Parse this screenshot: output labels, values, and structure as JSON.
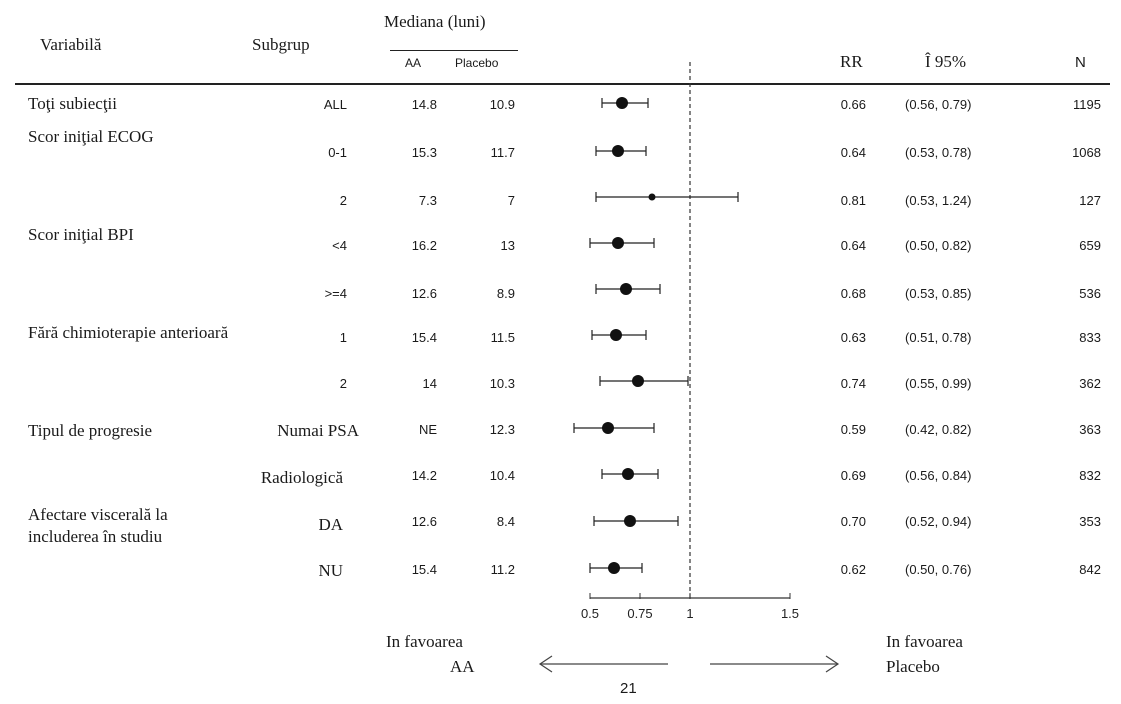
{
  "header": {
    "variable": "Variabilă",
    "subgroup": "Subgrup",
    "median": "Mediana (luni)",
    "aa": "AA",
    "placebo": "Placebo",
    "rr": "RR",
    "ci": "Î 95%",
    "n": "N"
  },
  "variables": {
    "all": "Toţi subiecţii",
    "ecog": "Scor iniţial ECOG",
    "bpi": "Scor iniţial BPI",
    "chemo": "Fără chimioterapie anterioară",
    "progression": "Tipul de progresie",
    "visceral_line1": "Afectare viscerală la",
    "visceral_line2": "includerea în studiu"
  },
  "rows": [
    {
      "subgroup": "ALL",
      "aa": "14.8",
      "placebo": "10.9",
      "rr": "0.66",
      "ci": "(0.56, 0.79)",
      "n": "1195"
    },
    {
      "subgroup": "0-1",
      "aa": "15.3",
      "placebo": "11.7",
      "rr": "0.64",
      "ci": "(0.53, 0.78)",
      "n": "1068"
    },
    {
      "subgroup": "2",
      "aa": "7.3",
      "placebo": "7",
      "rr": "0.81",
      "ci": "(0.53, 1.24)",
      "n": "127"
    },
    {
      "subgroup": "<4",
      "aa": "16.2",
      "placebo": "13",
      "rr": "0.64",
      "ci": "(0.50, 0.82)",
      "n": "659"
    },
    {
      "subgroup": ">=4",
      "aa": "12.6",
      "placebo": "8.9",
      "rr": "0.68",
      "ci": "(0.53, 0.85)",
      "n": "536"
    },
    {
      "subgroup": "1",
      "aa": "15.4",
      "placebo": "11.5",
      "rr": "0.63",
      "ci": "(0.51, 0.78)",
      "n": "833"
    },
    {
      "subgroup": "2",
      "aa": "14",
      "placebo": "10.3",
      "rr": "0.74",
      "ci": "(0.55, 0.99)",
      "n": "362"
    },
    {
      "subgroup": "Numai PSA",
      "aa": "NE",
      "placebo": "12.3",
      "rr": "0.59",
      "ci": "(0.42, 0.82)",
      "n": "363"
    },
    {
      "subgroup": "Radiologică",
      "aa": "14.2",
      "placebo": "10.4",
      "rr": "0.69",
      "ci": "(0.56, 0.84)",
      "n": "832"
    },
    {
      "subgroup": "DA",
      "aa": "12.6",
      "placebo": "8.4",
      "rr": "0.70",
      "ci": "(0.52, 0.94)",
      "n": "353"
    },
    {
      "subgroup": "NU",
      "aa": "15.4",
      "placebo": "11.2",
      "rr": "0.62",
      "ci": "(0.50, 0.76)",
      "n": "842"
    }
  ],
  "footer": {
    "favor_aa_line1": "In favoarea",
    "favor_aa_line2": "AA",
    "favor_placebo_line1": "In favoarea",
    "favor_placebo_line2": "Placebo",
    "page_number": "21"
  },
  "chart_data": {
    "type": "forest",
    "xlim": [
      0.5,
      1.5
    ],
    "reference_line": 1,
    "ticks": [
      {
        "value": 0.5,
        "label": "0.5"
      },
      {
        "value": 0.75,
        "label": "0.75"
      },
      {
        "value": 1,
        "label": "1"
      },
      {
        "value": 1.5,
        "label": "1.5"
      }
    ],
    "points": [
      {
        "estimate": 0.66,
        "low": 0.56,
        "high": 0.79
      },
      {
        "estimate": 0.64,
        "low": 0.53,
        "high": 0.78
      },
      {
        "estimate": 0.81,
        "low": 0.53,
        "high": 1.24
      },
      {
        "estimate": 0.64,
        "low": 0.5,
        "high": 0.82
      },
      {
        "estimate": 0.68,
        "low": 0.53,
        "high": 0.85
      },
      {
        "estimate": 0.63,
        "low": 0.51,
        "high": 0.78
      },
      {
        "estimate": 0.74,
        "low": 0.55,
        "high": 0.99
      },
      {
        "estimate": 0.59,
        "low": 0.42,
        "high": 0.82
      },
      {
        "estimate": 0.69,
        "low": 0.56,
        "high": 0.84
      },
      {
        "estimate": 0.7,
        "low": 0.52,
        "high": 0.94
      },
      {
        "estimate": 0.62,
        "low": 0.5,
        "high": 0.76
      }
    ]
  }
}
